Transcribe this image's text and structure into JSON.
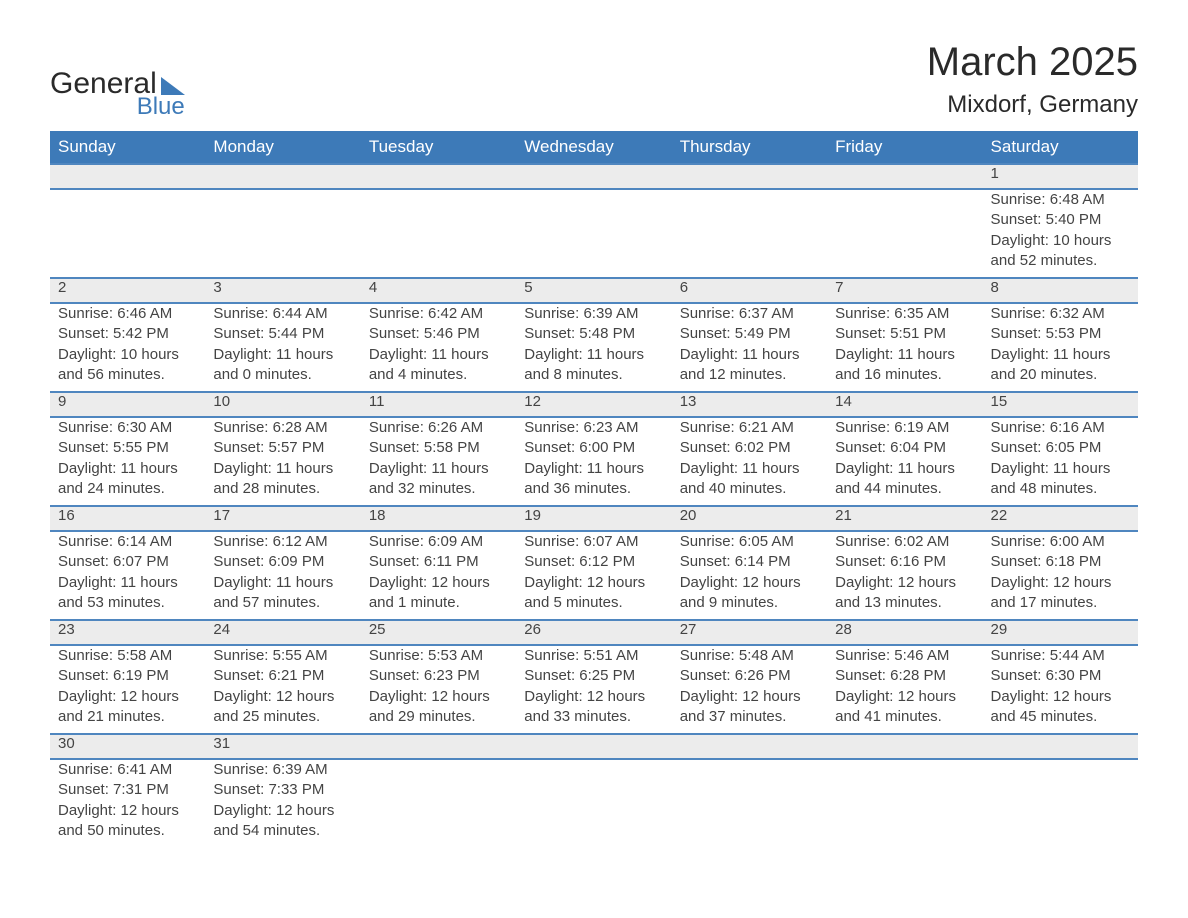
{
  "logo": {
    "text1": "General",
    "text2": "Blue",
    "brand_color": "#3d7ab8"
  },
  "header": {
    "month": "March 2025",
    "location": "Mixdorf, Germany"
  },
  "colors": {
    "header_bg": "#3d7ab8",
    "header_text": "#ffffff",
    "row_divider": "#4f86bf",
    "daynum_bg": "#ececec",
    "body_text": "#444444",
    "title_text": "#2a2a2a"
  },
  "table": {
    "type": "calendar",
    "columns": [
      "Sunday",
      "Monday",
      "Tuesday",
      "Wednesday",
      "Thursday",
      "Friday",
      "Saturday"
    ],
    "weeks": [
      [
        null,
        null,
        null,
        null,
        null,
        null,
        {
          "d": "1",
          "sr": "6:48 AM",
          "ss": "5:40 PM",
          "dl": "10 hours and 52 minutes."
        }
      ],
      [
        {
          "d": "2",
          "sr": "6:46 AM",
          "ss": "5:42 PM",
          "dl": "10 hours and 56 minutes."
        },
        {
          "d": "3",
          "sr": "6:44 AM",
          "ss": "5:44 PM",
          "dl": "11 hours and 0 minutes."
        },
        {
          "d": "4",
          "sr": "6:42 AM",
          "ss": "5:46 PM",
          "dl": "11 hours and 4 minutes."
        },
        {
          "d": "5",
          "sr": "6:39 AM",
          "ss": "5:48 PM",
          "dl": "11 hours and 8 minutes."
        },
        {
          "d": "6",
          "sr": "6:37 AM",
          "ss": "5:49 PM",
          "dl": "11 hours and 12 minutes."
        },
        {
          "d": "7",
          "sr": "6:35 AM",
          "ss": "5:51 PM",
          "dl": "11 hours and 16 minutes."
        },
        {
          "d": "8",
          "sr": "6:32 AM",
          "ss": "5:53 PM",
          "dl": "11 hours and 20 minutes."
        }
      ],
      [
        {
          "d": "9",
          "sr": "6:30 AM",
          "ss": "5:55 PM",
          "dl": "11 hours and 24 minutes."
        },
        {
          "d": "10",
          "sr": "6:28 AM",
          "ss": "5:57 PM",
          "dl": "11 hours and 28 minutes."
        },
        {
          "d": "11",
          "sr": "6:26 AM",
          "ss": "5:58 PM",
          "dl": "11 hours and 32 minutes."
        },
        {
          "d": "12",
          "sr": "6:23 AM",
          "ss": "6:00 PM",
          "dl": "11 hours and 36 minutes."
        },
        {
          "d": "13",
          "sr": "6:21 AM",
          "ss": "6:02 PM",
          "dl": "11 hours and 40 minutes."
        },
        {
          "d": "14",
          "sr": "6:19 AM",
          "ss": "6:04 PM",
          "dl": "11 hours and 44 minutes."
        },
        {
          "d": "15",
          "sr": "6:16 AM",
          "ss": "6:05 PM",
          "dl": "11 hours and 48 minutes."
        }
      ],
      [
        {
          "d": "16",
          "sr": "6:14 AM",
          "ss": "6:07 PM",
          "dl": "11 hours and 53 minutes."
        },
        {
          "d": "17",
          "sr": "6:12 AM",
          "ss": "6:09 PM",
          "dl": "11 hours and 57 minutes."
        },
        {
          "d": "18",
          "sr": "6:09 AM",
          "ss": "6:11 PM",
          "dl": "12 hours and 1 minute."
        },
        {
          "d": "19",
          "sr": "6:07 AM",
          "ss": "6:12 PM",
          "dl": "12 hours and 5 minutes."
        },
        {
          "d": "20",
          "sr": "6:05 AM",
          "ss": "6:14 PM",
          "dl": "12 hours and 9 minutes."
        },
        {
          "d": "21",
          "sr": "6:02 AM",
          "ss": "6:16 PM",
          "dl": "12 hours and 13 minutes."
        },
        {
          "d": "22",
          "sr": "6:00 AM",
          "ss": "6:18 PM",
          "dl": "12 hours and 17 minutes."
        }
      ],
      [
        {
          "d": "23",
          "sr": "5:58 AM",
          "ss": "6:19 PM",
          "dl": "12 hours and 21 minutes."
        },
        {
          "d": "24",
          "sr": "5:55 AM",
          "ss": "6:21 PM",
          "dl": "12 hours and 25 minutes."
        },
        {
          "d": "25",
          "sr": "5:53 AM",
          "ss": "6:23 PM",
          "dl": "12 hours and 29 minutes."
        },
        {
          "d": "26",
          "sr": "5:51 AM",
          "ss": "6:25 PM",
          "dl": "12 hours and 33 minutes."
        },
        {
          "d": "27",
          "sr": "5:48 AM",
          "ss": "6:26 PM",
          "dl": "12 hours and 37 minutes."
        },
        {
          "d": "28",
          "sr": "5:46 AM",
          "ss": "6:28 PM",
          "dl": "12 hours and 41 minutes."
        },
        {
          "d": "29",
          "sr": "5:44 AM",
          "ss": "6:30 PM",
          "dl": "12 hours and 45 minutes."
        }
      ],
      [
        {
          "d": "30",
          "sr": "6:41 AM",
          "ss": "7:31 PM",
          "dl": "12 hours and 50 minutes."
        },
        {
          "d": "31",
          "sr": "6:39 AM",
          "ss": "7:33 PM",
          "dl": "12 hours and 54 minutes."
        },
        null,
        null,
        null,
        null,
        null
      ]
    ],
    "labels": {
      "sunrise": "Sunrise:",
      "sunset": "Sunset:",
      "daylight": "Daylight:"
    }
  }
}
